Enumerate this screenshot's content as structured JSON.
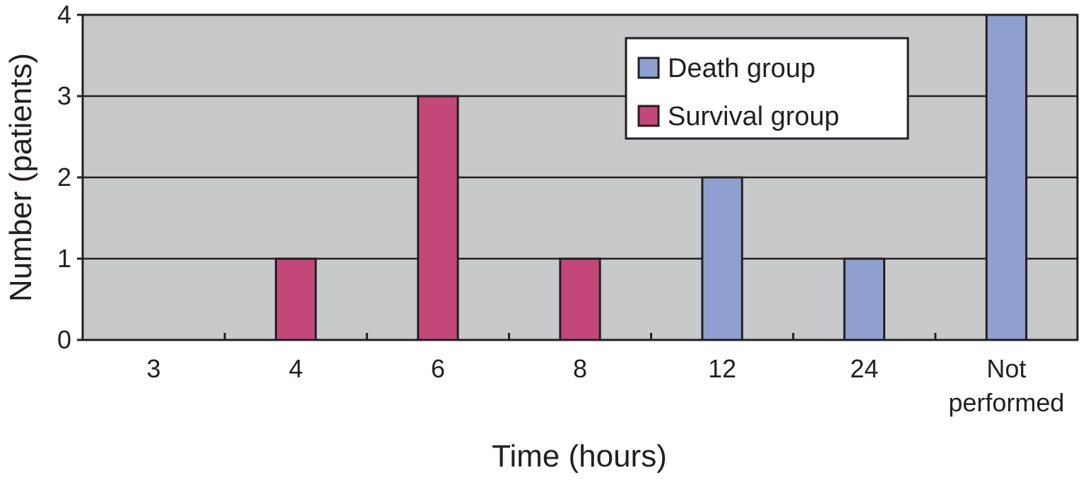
{
  "chart_data": {
    "type": "bar",
    "categories": [
      "3",
      "4",
      "6",
      "8",
      "12",
      "24",
      "Not performed"
    ],
    "category_label_lines": [
      [
        "3"
      ],
      [
        "4"
      ],
      [
        "6"
      ],
      [
        "8"
      ],
      [
        "12"
      ],
      [
        "24"
      ],
      [
        "Not",
        "performed"
      ]
    ],
    "series": [
      {
        "name": "Death group",
        "color": "#8fa0d0",
        "values": [
          0,
          0,
          0,
          0,
          2,
          1,
          4
        ]
      },
      {
        "name": "Survival group",
        "color": "#c4477a",
        "values": [
          0,
          1,
          3,
          1,
          0,
          0,
          0
        ]
      }
    ],
    "xlabel": "Time (hours)",
    "ylabel": "Number (patients)",
    "ylim": [
      0,
      4
    ],
    "yticks": [
      0,
      1,
      2,
      3,
      4
    ],
    "grid": true,
    "plot_background": "#c8c9cb",
    "legend_position": "top-right"
  }
}
